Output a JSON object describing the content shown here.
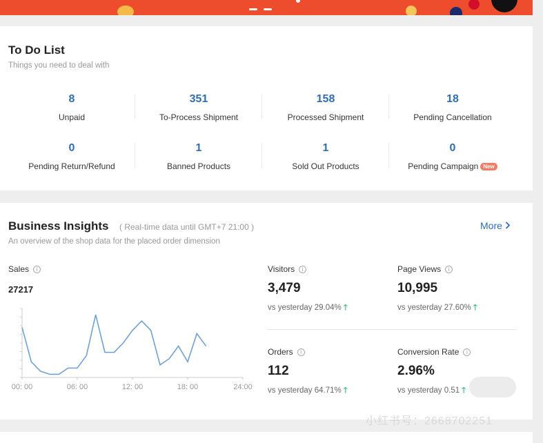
{
  "todo": {
    "title": "To Do List",
    "subtitle": "Things you need to deal with",
    "items": [
      {
        "value": "8",
        "label": "Unpaid"
      },
      {
        "value": "351",
        "label": "To-Process Shipment"
      },
      {
        "value": "158",
        "label": "Processed Shipment"
      },
      {
        "value": "18",
        "label": "Pending Cancellation"
      },
      {
        "value": "0",
        "label": "Pending Return/Refund"
      },
      {
        "value": "1",
        "label": "Banned Products"
      },
      {
        "value": "1",
        "label": "Sold Out Products"
      },
      {
        "value": "0",
        "label": "Pending Campaign",
        "badge": "New"
      }
    ]
  },
  "insights": {
    "title": "Business Insights",
    "note": "( Real-time data until GMT+7 21:00 )",
    "subtitle": "An overview of the shop data for the placed order dimension",
    "more_label": "More",
    "sales": {
      "label": "Sales",
      "value": "27217"
    },
    "metrics": [
      {
        "label": "Visitors",
        "value": "3,479",
        "compare": "vs yesterday 29.04%"
      },
      {
        "label": "Page Views",
        "value": "10,995",
        "compare": "vs yesterday 27.60%"
      },
      {
        "label": "Orders",
        "value": "112",
        "compare": "vs yesterday 64.71%"
      },
      {
        "label": "Conversion Rate",
        "value": "2.96%",
        "compare": "vs yesterday 0.51"
      }
    ]
  },
  "watermark": {
    "text": "小红书号：2668702251"
  },
  "colors": {
    "accent": "#2f6db5",
    "banner": "#ee4d2d",
    "up": "#3fbf7f",
    "line": "#6ea0d6"
  },
  "chart_data": {
    "type": "line",
    "x_ticks": [
      "00: 00",
      "06: 00",
      "12: 00",
      "18: 00",
      "24:00"
    ],
    "x": [
      0,
      1,
      2,
      3,
      4,
      5,
      6,
      7,
      8,
      9,
      10,
      11,
      12,
      13,
      14,
      15,
      16,
      17,
      18,
      19,
      20
    ],
    "series": [
      {
        "values": [
          80,
          25,
          10,
          5,
          5,
          15,
          15,
          35,
          100,
          40,
          40,
          55,
          75,
          90,
          75,
          20,
          30,
          50,
          25,
          70,
          50
        ]
      }
    ],
    "xlim": [
      0,
      24
    ],
    "ylim": [
      0,
      110
    ]
  }
}
